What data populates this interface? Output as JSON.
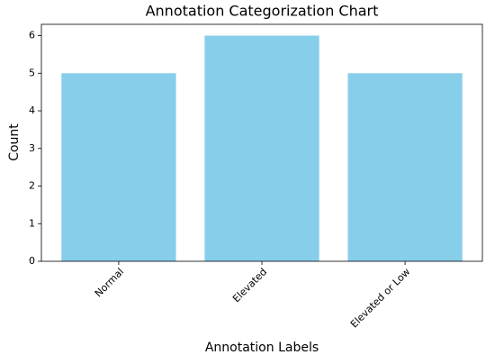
{
  "chart_data": {
    "type": "bar",
    "title": "Annotation Categorization Chart",
    "x_label": "Annotation Labels",
    "y_label": "Count",
    "categories": [
      "Normal",
      "Elevated",
      "Elevated or Low"
    ],
    "values": [
      5,
      6,
      5
    ],
    "color": "#87ceeb",
    "ylim": [
      0,
      6.3
    ],
    "yticks": [
      0,
      1,
      2,
      3,
      4,
      5,
      6
    ],
    "grid": false
  }
}
